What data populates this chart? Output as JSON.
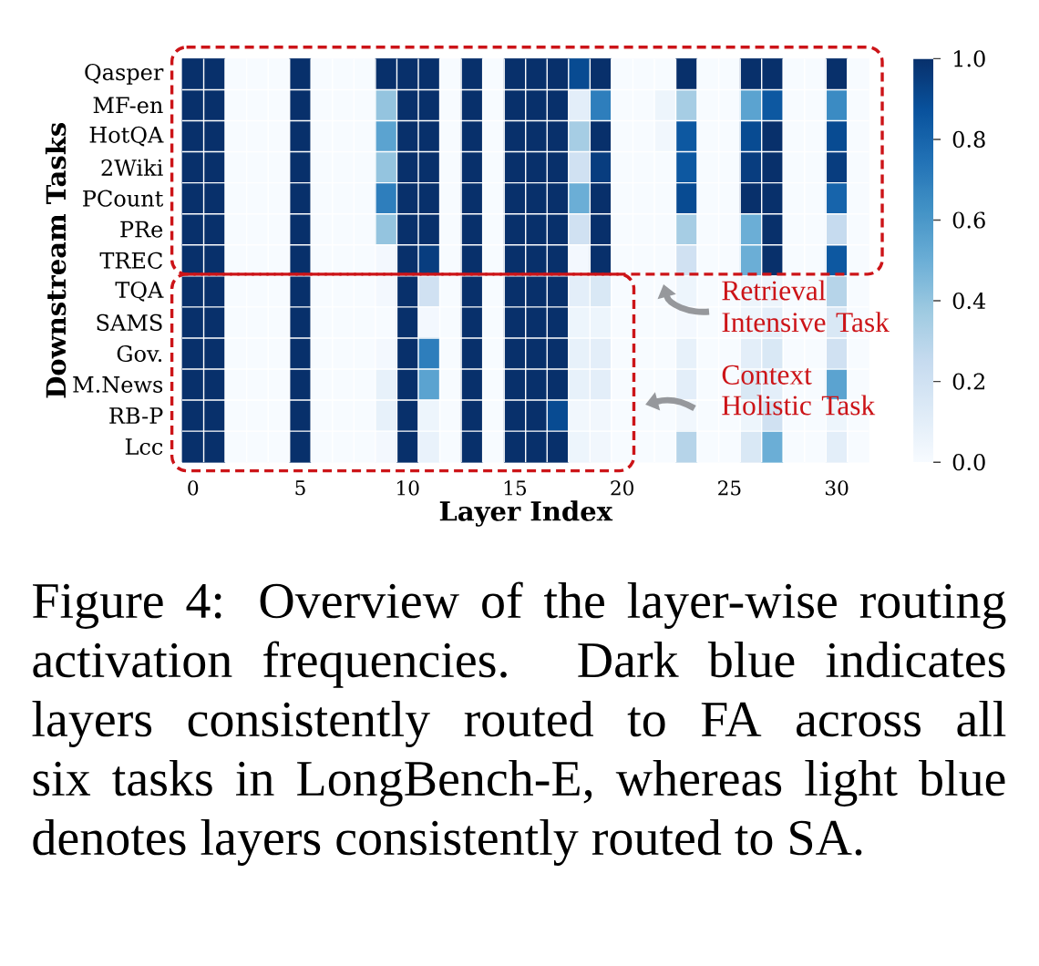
{
  "chart_data": {
    "type": "heatmap",
    "xlabel": "Layer Index",
    "ylabel": "Downstream Tasks",
    "categories": [
      "0",
      null,
      null,
      null,
      null,
      "5",
      null,
      null,
      null,
      null,
      "10",
      null,
      null,
      null,
      null,
      "15",
      null,
      null,
      null,
      null,
      "20",
      null,
      null,
      null,
      null,
      "25",
      null,
      null,
      null,
      null,
      "30",
      null
    ],
    "y_categories": [
      "Qasper",
      "MF-en",
      "HotQA",
      "2Wiki",
      "PCount",
      "PRe",
      "TREC",
      "TQA",
      "SAMS",
      "Gov.",
      "M.News",
      "RB-P",
      "Lcc"
    ],
    "cells": [
      [
        1,
        1,
        0,
        0,
        0,
        1,
        0,
        0,
        0,
        1,
        1,
        1,
        0,
        1,
        0,
        1,
        1,
        1,
        0.9,
        1,
        0,
        0,
        0,
        1,
        0,
        0,
        1,
        1,
        0,
        0,
        1,
        0
      ],
      [
        1,
        1,
        0,
        0,
        0,
        1,
        0,
        0,
        0,
        0.4,
        1,
        1,
        0,
        1,
        0,
        1,
        1,
        1,
        0.1,
        0.7,
        0,
        0,
        0.05,
        0.35,
        0,
        0,
        0.55,
        0.85,
        0,
        0,
        0.65,
        0
      ],
      [
        1,
        1,
        0,
        0,
        0,
        1,
        0,
        0,
        0,
        0.55,
        1,
        1,
        0,
        1,
        0,
        1,
        1,
        1,
        0.35,
        1,
        0,
        0,
        0.03,
        0.85,
        0,
        0,
        0.9,
        1,
        0,
        0,
        0.9,
        0
      ],
      [
        1,
        1,
        0,
        0,
        0,
        1,
        0,
        0,
        0,
        0.4,
        1,
        1,
        0,
        1,
        0,
        1,
        1,
        1,
        0.2,
        0.95,
        0,
        0,
        0,
        0.85,
        0,
        0,
        0.95,
        1,
        0,
        0,
        0.95,
        0
      ],
      [
        1,
        1,
        0,
        0,
        0,
        1,
        0,
        0,
        0,
        0.7,
        1,
        1,
        0,
        1,
        0,
        1,
        1,
        1,
        0.5,
        1,
        0,
        0,
        0,
        0.9,
        0,
        0,
        1,
        1,
        0,
        0,
        0.8,
        0
      ],
      [
        1,
        1,
        0,
        0,
        0,
        1,
        0,
        0,
        0,
        0.4,
        1,
        1,
        0,
        1,
        0,
        1,
        1,
        1,
        0.2,
        1,
        0,
        0,
        0,
        0.35,
        0,
        0,
        0.5,
        1,
        0,
        0,
        0.25,
        0
      ],
      [
        1,
        1,
        0,
        0,
        0,
        1,
        0,
        0,
        0,
        0.02,
        1,
        0.95,
        0,
        1,
        0,
        1,
        1,
        1,
        0.02,
        1,
        0,
        0,
        0,
        0.2,
        0,
        0,
        0.5,
        1,
        0,
        0,
        0.85,
        0
      ],
      [
        1,
        1,
        0,
        0,
        0,
        1,
        0,
        0,
        0,
        0.02,
        1,
        0.2,
        0,
        1,
        0,
        1,
        1,
        1,
        0.1,
        0.15,
        0,
        0,
        0,
        0.05,
        0,
        0,
        0.05,
        0.05,
        0,
        0,
        0.3,
        0
      ],
      [
        1,
        1,
        0,
        0,
        0,
        1,
        0,
        0,
        0,
        0,
        1,
        0.02,
        0,
        1,
        0,
        1,
        1,
        1,
        0.05,
        0.05,
        0,
        0,
        0,
        0.02,
        0,
        0,
        0.05,
        0.1,
        0,
        0,
        0.15,
        0
      ],
      [
        1,
        1,
        0,
        0,
        0,
        1,
        0,
        0,
        0,
        0.02,
        1,
        0.7,
        0,
        1,
        0,
        1,
        1,
        1,
        0.08,
        0.1,
        0,
        0,
        0,
        0.08,
        0,
        0,
        0.1,
        0.15,
        0,
        0,
        0.2,
        0
      ],
      [
        1,
        1,
        0,
        0,
        0,
        1,
        0,
        0,
        0,
        0.08,
        1,
        0.55,
        0,
        1,
        0,
        1,
        1,
        1,
        0.08,
        0.1,
        0,
        0,
        0,
        0.1,
        0,
        0,
        0.15,
        0.1,
        0,
        0,
        0.55,
        0
      ],
      [
        1,
        1,
        0,
        0,
        0,
        1,
        0,
        0,
        0,
        0.08,
        1,
        0.05,
        0,
        1,
        0,
        1,
        1,
        0.9,
        0.03,
        0.03,
        0,
        0,
        0,
        0.03,
        0,
        0,
        0.05,
        0.2,
        0,
        0,
        0.05,
        0
      ],
      [
        1,
        1,
        0,
        0,
        0,
        1,
        0,
        0,
        0,
        0.02,
        1,
        0.07,
        0,
        1,
        0,
        1,
        1,
        1,
        0.05,
        0.03,
        0,
        0,
        0,
        0.3,
        0,
        0,
        0.15,
        0.5,
        0,
        0,
        0.1,
        0
      ]
    ],
    "clim": [
      0,
      1
    ],
    "cticks": [
      {
        "value": 0,
        "label": "0.0"
      },
      {
        "value": 0.2,
        "label": "0.2"
      },
      {
        "value": 0.4,
        "label": "0.4"
      },
      {
        "value": 0.6,
        "label": "0.6"
      },
      {
        "value": 0.8,
        "label": "0.8"
      },
      {
        "value": 1,
        "label": "1.0"
      }
    ],
    "annotations": [
      "Retrieval Intensive Task",
      "Context Holistic Task",
      "Figure 4: Overview of the layer-wise routing activation frequencies. Dark blue indicates layers consistently routed to FA across all six tasks in LongBench-E, whereas light blue denotes layers consistently routed to SA."
    ]
  }
}
